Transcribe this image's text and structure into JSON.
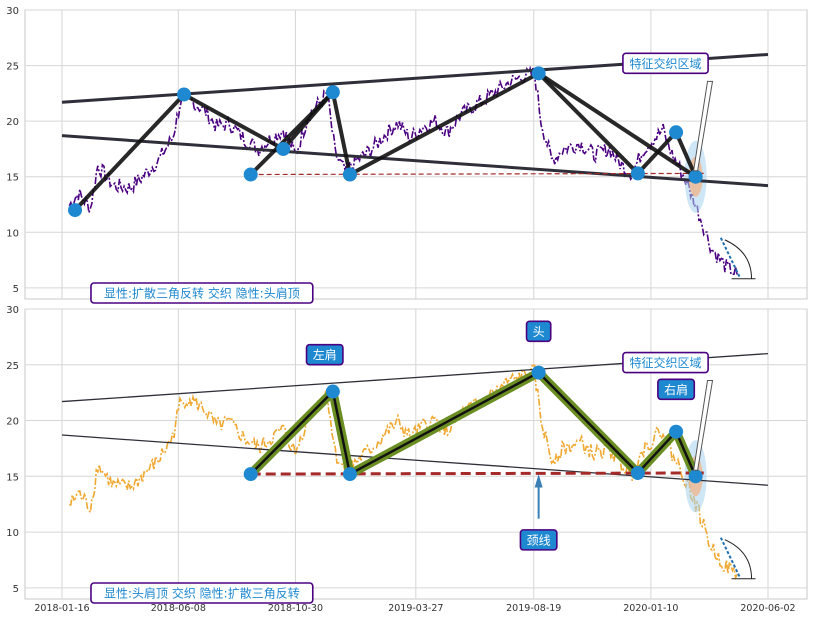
{
  "chart_data": [
    {
      "type": "line",
      "title": "",
      "xlabel": "",
      "ylabel": "",
      "ylim": [
        4,
        30
      ],
      "yticks": [
        5,
        10,
        15,
        20,
        25,
        30
      ],
      "grid": true,
      "colors": {
        "price": "#4b0082",
        "pattern": "#111111",
        "trend": "#2f2f3a",
        "neckline": "#a52a2a",
        "pivot": "#1e88d0",
        "label_text": "#1e88d0",
        "label_border": "#4b0082"
      },
      "price_points": [
        [
          "2018-01-25",
          12.4
        ],
        [
          "2018-02-05",
          13.5
        ],
        [
          "2018-02-20",
          12.2
        ],
        [
          "2018-03-01",
          16.0
        ],
        [
          "2018-03-20",
          14.2
        ],
        [
          "2018-04-10",
          14.0
        ],
        [
          "2018-04-25",
          15.0
        ],
        [
          "2018-05-15",
          16.5
        ],
        [
          "2018-06-01",
          18.5
        ],
        [
          "2018-06-10",
          21.5
        ],
        [
          "2018-06-20",
          22.0
        ],
        [
          "2018-07-10",
          21.0
        ],
        [
          "2018-07-25",
          19.5
        ],
        [
          "2018-08-10",
          19.8
        ],
        [
          "2018-08-28",
          18.4
        ],
        [
          "2018-09-15",
          17.5
        ],
        [
          "2018-09-28",
          18.3
        ],
        [
          "2018-10-15",
          19.2
        ],
        [
          "2018-10-30",
          17.0
        ],
        [
          "2018-11-15",
          20.5
        ],
        [
          "2018-11-30",
          21.8
        ],
        [
          "2018-12-08",
          22.5
        ],
        [
          "2018-12-18",
          17.0
        ],
        [
          "2018-12-30",
          15.5
        ],
        [
          "2019-01-15",
          16.5
        ],
        [
          "2019-02-01",
          17.5
        ],
        [
          "2019-02-20",
          19.0
        ],
        [
          "2019-03-05",
          19.8
        ],
        [
          "2019-03-20",
          18.5
        ],
        [
          "2019-04-05",
          19.5
        ],
        [
          "2019-04-20",
          20.0
        ],
        [
          "2019-05-05",
          19.0
        ],
        [
          "2019-05-20",
          20.5
        ],
        [
          "2019-06-10",
          21.5
        ],
        [
          "2019-07-01",
          22.5
        ],
        [
          "2019-07-20",
          23.5
        ],
        [
          "2019-08-05",
          24.0
        ],
        [
          "2019-08-20",
          24.3
        ],
        [
          "2019-08-28",
          20.0
        ],
        [
          "2019-09-10",
          16.5
        ],
        [
          "2019-09-25",
          17.5
        ],
        [
          "2019-10-15",
          18.0
        ],
        [
          "2019-11-01",
          17.0
        ],
        [
          "2019-11-20",
          17.5
        ],
        [
          "2019-12-05",
          16.0
        ],
        [
          "2019-12-18",
          15.3
        ],
        [
          "2020-01-01",
          17.5
        ],
        [
          "2020-01-15",
          18.5
        ],
        [
          "2020-01-25",
          19.2
        ],
        [
          "2020-02-05",
          17.0
        ],
        [
          "2020-02-20",
          15.0
        ],
        [
          "2020-03-05",
          12.5
        ],
        [
          "2020-03-15",
          10.5
        ],
        [
          "2020-03-25",
          8.5
        ],
        [
          "2020-04-10",
          7.0
        ],
        [
          "2020-04-25",
          6.2
        ]
      ],
      "pattern_lines": [
        [
          [
            "2018-02-01",
            12.0
          ],
          [
            "2018-06-15",
            22.4
          ]
        ],
        [
          [
            "2018-06-15",
            22.4
          ],
          [
            "2018-10-15",
            17.5
          ]
        ],
        [
          [
            "2018-10-15",
            17.5
          ],
          [
            "2018-12-15",
            22.6
          ]
        ],
        [
          [
            "2018-12-15",
            22.6
          ],
          [
            "2019-01-05",
            15.2
          ]
        ],
        [
          [
            "2019-01-05",
            15.2
          ],
          [
            "2019-08-25",
            24.3
          ]
        ],
        [
          [
            "2019-08-25",
            24.3
          ],
          [
            "2019-12-25",
            15.3
          ]
        ],
        [
          [
            "2019-12-25",
            15.3
          ],
          [
            "2020-02-10",
            19.0
          ]
        ],
        [
          [
            "2020-02-10",
            19.0
          ],
          [
            "2020-03-05",
            15.0
          ]
        ],
        [
          [
            "2018-09-05",
            15.2
          ],
          [
            "2018-12-15",
            22.6
          ]
        ],
        [
          [
            "2019-08-25",
            24.3
          ],
          [
            "2020-03-05",
            15.0
          ]
        ]
      ],
      "trend_lines": [
        [
          [
            "2018-01-16",
            21.7
          ],
          [
            "2020-06-02",
            26.0
          ]
        ],
        [
          [
            "2018-01-16",
            18.7
          ],
          [
            "2020-06-02",
            14.2
          ]
        ]
      ],
      "neckline": [
        [
          "2018-09-05",
          15.2
        ],
        [
          "2020-03-15",
          15.3
        ]
      ],
      "pivots": [
        [
          "2018-02-01",
          12.0
        ],
        [
          "2018-06-15",
          22.4
        ],
        [
          "2018-09-05",
          15.2
        ],
        [
          "2018-10-15",
          17.5
        ],
        [
          "2018-12-15",
          22.6
        ],
        [
          "2019-01-05",
          15.2
        ],
        [
          "2019-08-25",
          24.3
        ],
        [
          "2019-12-25",
          15.3
        ],
        [
          "2020-02-10",
          19.0
        ],
        [
          "2020-03-05",
          15.0
        ]
      ],
      "annotations": [
        {
          "text": "特征交织区域",
          "at": [
            "2020-01-28",
            25.2
          ]
        },
        {
          "text": "显性:扩散三角反转 交织 隐性:头肩顶",
          "at": [
            "2018-02-28",
            4.5
          ]
        }
      ]
    },
    {
      "type": "line",
      "title": "",
      "xlabel": "",
      "ylabel": "",
      "ylim": [
        4,
        30
      ],
      "yticks": [
        5,
        10,
        15,
        20,
        25,
        30
      ],
      "xticks": [
        "2018-01-16",
        "2018-06-08",
        "2018-10-30",
        "2019-03-27",
        "2019-08-19",
        "2020-01-10",
        "2020-06-02"
      ],
      "grid": true,
      "colors": {
        "price": "#f0a830",
        "pattern": "#6b8e23",
        "pattern_core": "#111111",
        "trend": "#2f2f3a",
        "neckline": "#a52a2a",
        "pivot": "#1e88d0",
        "label_fill": "#1e88d0",
        "label_border": "#4b0082"
      },
      "pattern_lines": [
        [
          [
            "2018-09-05",
            15.2
          ],
          [
            "2018-12-15",
            22.6
          ]
        ],
        [
          [
            "2018-12-15",
            22.6
          ],
          [
            "2019-01-05",
            15.2
          ]
        ],
        [
          [
            "2019-01-05",
            15.2
          ],
          [
            "2019-08-25",
            24.3
          ]
        ],
        [
          [
            "2019-08-25",
            24.3
          ],
          [
            "2019-12-25",
            15.3
          ]
        ],
        [
          [
            "2019-12-25",
            15.3
          ],
          [
            "2020-02-10",
            19.0
          ]
        ],
        [
          [
            "2020-02-10",
            19.0
          ],
          [
            "2020-03-05",
            15.0
          ]
        ]
      ],
      "trend_lines": [
        [
          [
            "2018-01-16",
            21.7
          ],
          [
            "2020-06-02",
            26.0
          ]
        ],
        [
          [
            "2018-01-16",
            18.7
          ],
          [
            "2020-06-02",
            14.2
          ]
        ]
      ],
      "neckline": [
        [
          "2018-09-05",
          15.2
        ],
        [
          "2020-03-15",
          15.3
        ]
      ],
      "pivots": [
        [
          "2018-09-05",
          15.2
        ],
        [
          "2018-12-15",
          22.6
        ],
        [
          "2019-01-05",
          15.2
        ],
        [
          "2019-08-25",
          24.3
        ],
        [
          "2019-12-25",
          15.3
        ],
        [
          "2020-02-10",
          19.0
        ],
        [
          "2020-03-05",
          15.0
        ]
      ],
      "annotations": [
        {
          "text": "左肩",
          "at": [
            "2018-12-05",
            25.9
          ]
        },
        {
          "text": "头",
          "at": [
            "2019-08-25",
            28.0
          ]
        },
        {
          "text": "右肩",
          "at": [
            "2020-02-10",
            22.8
          ]
        },
        {
          "text": "特征交织区域",
          "at": [
            "2020-01-28",
            25.2
          ]
        },
        {
          "text": "颈线",
          "at": [
            "2019-08-25",
            9.3
          ]
        },
        {
          "text": "显性:头肩顶 交织 隐性:扩散三角反转",
          "at": [
            "2018-02-28",
            4.8
          ]
        }
      ]
    }
  ]
}
